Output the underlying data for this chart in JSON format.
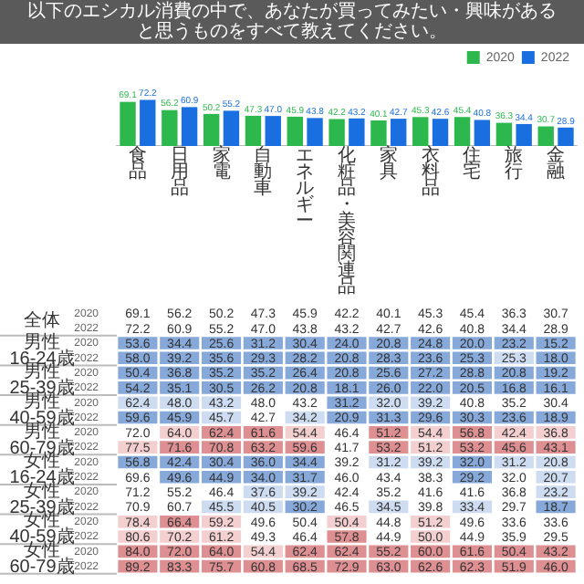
{
  "chart_data": [
    {
      "type": "bar",
      "title": "以下のエシカル消費の中で、あなたが買ってみたい・興味があると思うものをすべて教えてください。",
      "categories": [
        "食品",
        "日用品",
        "家電",
        "自動車",
        "エネルギー",
        "化粧品・美容関連品",
        "家具",
        "衣料品",
        "住宅",
        "旅行",
        "金融"
      ],
      "series": [
        {
          "name": "2020",
          "color": "#2db84d",
          "values": [
            69.1,
            56.2,
            50.2,
            47.3,
            45.9,
            42.2,
            40.1,
            45.3,
            45.4,
            36.3,
            30.7
          ],
          "value_labels": [
            "69.1",
            "56.2",
            "50.2",
            "47.3",
            "45.9",
            "42.2",
            "40.1",
            "45.3",
            "45.4",
            "36.3",
            "30.7"
          ]
        },
        {
          "name": "2022",
          "color": "#1a6fe0",
          "values": [
            72.2,
            60.9,
            55.2,
            47.0,
            43.8,
            43.2,
            42.7,
            42.6,
            40.8,
            34.4,
            28.9
          ],
          "value_labels": [
            "72.2",
            "60.9",
            "55.2",
            "47.0",
            "43.8",
            "43.2",
            "42.7",
            "42.6",
            "40.8",
            "34.4",
            "28.9"
          ]
        }
      ],
      "legend": "top right"
    },
    {
      "type": "heatmap",
      "categories": [
        "食品",
        "日用品",
        "家電",
        "自動車",
        "エネルギー",
        "化粧品・美容関連品",
        "家具",
        "衣料品",
        "住宅",
        "旅行",
        "金融"
      ],
      "y_categories": [
        "2020",
        "2022",
        "2020",
        "2022",
        "2020",
        "2022",
        "2020",
        "2022",
        "2020",
        "2022",
        "2020",
        "2022",
        "2020",
        "2022",
        "2020",
        "2022",
        "2020",
        "2022"
      ],
      "annotations": [
        "全体",
        "男性 16-24歳",
        "男性 25-39歳",
        "男性 40-59歳",
        "男性 60-79歳",
        "女性 16-24歳",
        "女性 25-39歳",
        "女性 40-59歳",
        "女性 60-79歳"
      ],
      "tick_labels": "y",
      "cells": [
        [
          69.1,
          56.2,
          50.2,
          47.3,
          45.9,
          42.2,
          40.1,
          45.3,
          45.4,
          36.3,
          30.7
        ],
        [
          72.2,
          60.9,
          55.2,
          47.0,
          43.8,
          43.2,
          42.7,
          42.6,
          40.8,
          34.4,
          28.9
        ],
        [
          53.6,
          34.4,
          25.6,
          31.2,
          30.4,
          24.0,
          20.8,
          24.8,
          20.0,
          23.2,
          15.2
        ],
        [
          58.0,
          39.2,
          35.6,
          29.3,
          28.2,
          20.8,
          28.3,
          23.6,
          25.3,
          25.3,
          18.0
        ],
        [
          50.4,
          36.8,
          35.2,
          35.2,
          26.4,
          20.8,
          25.6,
          27.2,
          28.8,
          20.8,
          19.2
        ],
        [
          54.2,
          35.1,
          30.5,
          26.2,
          20.8,
          18.1,
          26.0,
          22.0,
          20.5,
          16.8,
          16.1
        ],
        [
          62.4,
          48.0,
          43.2,
          48.0,
          43.2,
          31.2,
          32.0,
          39.2,
          40.8,
          35.2,
          30.4
        ],
        [
          59.6,
          45.9,
          45.7,
          42.7,
          34.2,
          20.9,
          31.3,
          29.6,
          30.3,
          23.6,
          18.9
        ],
        [
          72.0,
          64.0,
          62.4,
          61.6,
          54.4,
          46.4,
          51.2,
          54.4,
          56.8,
          42.4,
          36.8
        ],
        [
          77.5,
          71.6,
          70.8,
          63.2,
          59.6,
          41.7,
          53.2,
          51.2,
          53.2,
          45.6,
          43.1
        ],
        [
          56.8,
          42.4,
          30.4,
          36.0,
          34.4,
          39.2,
          31.2,
          39.2,
          32.0,
          31.2,
          20.8
        ],
        [
          69.6,
          49.6,
          44.9,
          34.0,
          31.7,
          46.0,
          43.4,
          38.3,
          29.2,
          32.0,
          20.7
        ],
        [
          71.2,
          55.2,
          46.4,
          37.6,
          39.2,
          42.4,
          35.2,
          41.6,
          41.6,
          36.8,
          23.2
        ],
        [
          70.9,
          60.7,
          45.5,
          40.5,
          30.2,
          46.5,
          34.5,
          39.8,
          33.4,
          29.7,
          18.7
        ],
        [
          78.4,
          66.4,
          59.2,
          49.6,
          50.4,
          50.4,
          44.8,
          51.2,
          49.6,
          33.6,
          33.6
        ],
        [
          80.6,
          70.2,
          61.2,
          49.3,
          46.4,
          57.8,
          44.9,
          50.0,
          44.9,
          35.9,
          29.5
        ],
        [
          84.0,
          72.0,
          64.0,
          54.4,
          62.4,
          62.4,
          55.2,
          60.0,
          61.6,
          50.4,
          43.2
        ],
        [
          89.2,
          83.3,
          75.7,
          60.8,
          68.5,
          72.9,
          63.0,
          62.6,
          62.3,
          51.9,
          46.0
        ]
      ],
      "cell_labels": [
        [
          "69.1",
          "56.2",
          "50.2",
          "47.3",
          "45.9",
          "42.2",
          "40.1",
          "45.3",
          "45.4",
          "36.3",
          "30.7"
        ],
        [
          "72.2",
          "60.9",
          "55.2",
          "47.0",
          "43.8",
          "43.2",
          "42.7",
          "42.6",
          "40.8",
          "34.4",
          "28.9"
        ],
        [
          "53.6",
          "34.4",
          "25.6",
          "31.2",
          "30.4",
          "24.0",
          "20.8",
          "24.8",
          "20.0",
          "23.2",
          "15.2"
        ],
        [
          "58.0",
          "39.2",
          "35.6",
          "29.3",
          "28.2",
          "20.8",
          "28.3",
          "23.6",
          "25.3",
          "25.3",
          "18.0"
        ],
        [
          "50.4",
          "36.8",
          "35.2",
          "35.2",
          "26.4",
          "20.8",
          "25.6",
          "27.2",
          "28.8",
          "20.8",
          "19.2"
        ],
        [
          "54.2",
          "35.1",
          "30.5",
          "26.2",
          "20.8",
          "18.1",
          "26.0",
          "22.0",
          "20.5",
          "16.8",
          "16.1"
        ],
        [
          "62.4",
          "48.0",
          "43.2",
          "48.0",
          "43.2",
          "31.2",
          "32.0",
          "39.2",
          "40.8",
          "35.2",
          "30.4"
        ],
        [
          "59.6",
          "45.9",
          "45.7",
          "42.7",
          "34.2",
          "20.9",
          "31.3",
          "29.6",
          "30.3",
          "23.6",
          "18.9"
        ],
        [
          "72.0",
          "64.0",
          "62.4",
          "61.6",
          "54.4",
          "46.4",
          "51.2",
          "54.4",
          "56.8",
          "42.4",
          "36.8"
        ],
        [
          "77.5",
          "71.6",
          "70.8",
          "63.2",
          "59.6",
          "41.7",
          "53.2",
          "51.2",
          "53.2",
          "45.6",
          "43.1"
        ],
        [
          "56.8",
          "42.4",
          "30.4",
          "36.0",
          "34.4",
          "39.2",
          "31.2",
          "39.2",
          "32.0",
          "31.2",
          "20.8"
        ],
        [
          "69.6",
          "49.6",
          "44.9",
          "34.0",
          "31.7",
          "46.0",
          "43.4",
          "38.3",
          "29.2",
          "32.0",
          "20.7"
        ],
        [
          "71.2",
          "55.2",
          "46.4",
          "37.6",
          "39.2",
          "42.4",
          "35.2",
          "41.6",
          "41.6",
          "36.8",
          "23.2"
        ],
        [
          "70.9",
          "60.7",
          "45.5",
          "40.5",
          "30.2",
          "46.5",
          "34.5",
          "39.8",
          "33.4",
          "29.7",
          "18.7"
        ],
        [
          "78.4",
          "66.4",
          "59.2",
          "49.6",
          "50.4",
          "50.4",
          "44.8",
          "51.2",
          "49.6",
          "33.6",
          "33.6"
        ],
        [
          "80.6",
          "70.2",
          "61.2",
          "49.3",
          "46.4",
          "57.8",
          "44.9",
          "50.0",
          "44.9",
          "35.9",
          "29.5"
        ],
        [
          "84.0",
          "72.0",
          "64.0",
          "54.4",
          "62.4",
          "62.4",
          "55.2",
          "60.0",
          "61.6",
          "50.4",
          "43.2"
        ],
        [
          "89.2",
          "83.3",
          "75.7",
          "60.8",
          "68.5",
          "72.9",
          "63.0",
          "62.6",
          "62.3",
          "51.9",
          "46.0"
        ]
      ]
    }
  ]
}
